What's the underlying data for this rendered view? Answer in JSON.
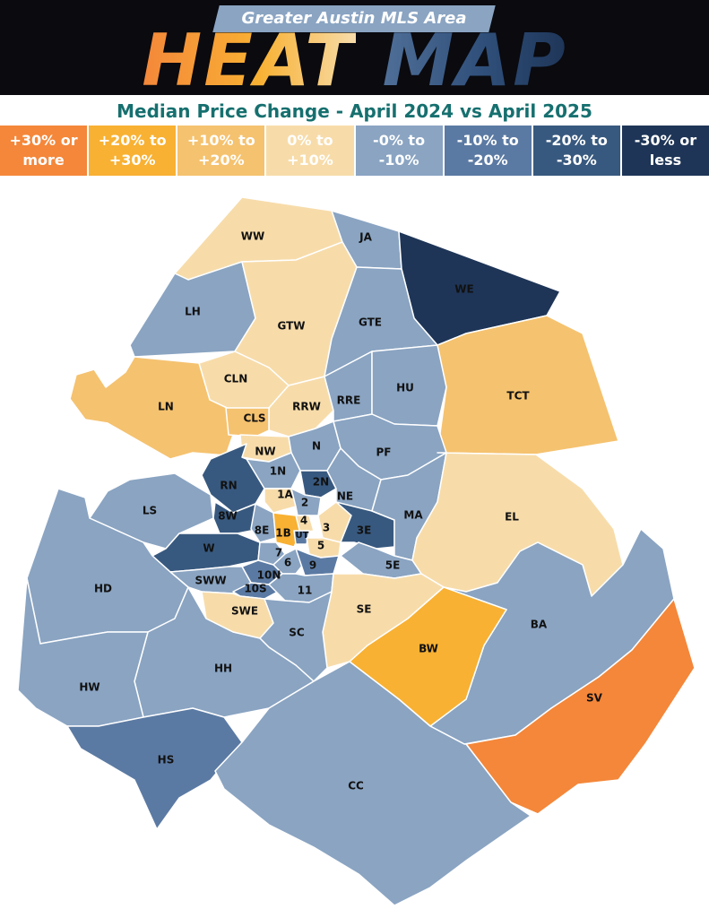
{
  "header": {
    "banner": "Greater Austin MLS Area",
    "title_heat": "HEAT",
    "title_map": "MAP"
  },
  "subtitle": "Median Price Change - April 2024 vs April 2025",
  "legend": [
    {
      "label": "+30% or\nmore",
      "color": "#f4873a"
    },
    {
      "label": "+20% to\n+30%",
      "color": "#f8b133"
    },
    {
      "label": "+10% to\n+20%",
      "color": "#f5c26f"
    },
    {
      "label": "0% to\n+10%",
      "color": "#f7dcaa"
    },
    {
      "label": "-0% to\n-10%",
      "color": "#8aa4c2"
    },
    {
      "label": "-10% to\n-20%",
      "color": "#5b7aa3"
    },
    {
      "label": "-20% to\n-30%",
      "color": "#38597f"
    },
    {
      "label": "-30% or\nless",
      "color": "#1e3557"
    }
  ],
  "areas": [
    {
      "code": "WW",
      "bucket": "0% to +10%"
    },
    {
      "code": "JA",
      "bucket": "-0% to -10%"
    },
    {
      "code": "WE",
      "bucket": "-30% or less"
    },
    {
      "code": "LH",
      "bucket": "-0% to -10%"
    },
    {
      "code": "GTW",
      "bucket": "0% to +10%"
    },
    {
      "code": "GTE",
      "bucket": "-0% to -10%"
    },
    {
      "code": "TCT",
      "bucket": "+10% to +20%"
    },
    {
      "code": "CLN",
      "bucket": "0% to +10%"
    },
    {
      "code": "LN",
      "bucket": "+10% to +20%"
    },
    {
      "code": "RRW",
      "bucket": "0% to +10%"
    },
    {
      "code": "RRE",
      "bucket": "-0% to -10%"
    },
    {
      "code": "HU",
      "bucket": "-0% to -10%"
    },
    {
      "code": "CLS",
      "bucket": "+10% to +20%"
    },
    {
      "code": "NW",
      "bucket": "0% to +10%"
    },
    {
      "code": "N",
      "bucket": "-0% to -10%"
    },
    {
      "code": "PF",
      "bucket": "-0% to -10%"
    },
    {
      "code": "1N",
      "bucket": "-0% to -10%"
    },
    {
      "code": "2N",
      "bucket": "-20% to -30%"
    },
    {
      "code": "RN",
      "bucket": "-20% to -30%"
    },
    {
      "code": "1A",
      "bucket": "0% to +10%"
    },
    {
      "code": "2",
      "bucket": "-0% to -10%"
    },
    {
      "code": "NE",
      "bucket": "-0% to -10%"
    },
    {
      "code": "LS",
      "bucket": "-0% to -10%"
    },
    {
      "code": "8W",
      "bucket": "-20% to -30%"
    },
    {
      "code": "4",
      "bucket": "0% to +10%"
    },
    {
      "code": "3",
      "bucket": "0% to +10%"
    },
    {
      "code": "3E",
      "bucket": "-20% to -30%"
    },
    {
      "code": "MA",
      "bucket": "-0% to -10%"
    },
    {
      "code": "EL",
      "bucket": "0% to +10%"
    },
    {
      "code": "8E",
      "bucket": "-0% to -10%"
    },
    {
      "code": "1B",
      "bucket": "+20% to +30%"
    },
    {
      "code": "UT",
      "bucket": "-10% to -20%"
    },
    {
      "code": "W",
      "bucket": "-20% to -30%"
    },
    {
      "code": "7",
      "bucket": "-0% to -10%"
    },
    {
      "code": "5",
      "bucket": "0% to +10%"
    },
    {
      "code": "6",
      "bucket": "-0% to -10%"
    },
    {
      "code": "9",
      "bucket": "-10% to -20%"
    },
    {
      "code": "5E",
      "bucket": "-0% to -10%"
    },
    {
      "code": "10N",
      "bucket": "-10% to -20%"
    },
    {
      "code": "SWW",
      "bucket": "-0% to -10%"
    },
    {
      "code": "10S",
      "bucket": "-10% to -20%"
    },
    {
      "code": "11",
      "bucket": "-0% to -10%"
    },
    {
      "code": "HD",
      "bucket": "-0% to -10%"
    },
    {
      "code": "SWE",
      "bucket": "0% to +10%"
    },
    {
      "code": "SE",
      "bucket": "0% to +10%"
    },
    {
      "code": "BA",
      "bucket": "-0% to -10%"
    },
    {
      "code": "SC",
      "bucket": "-0% to -10%"
    },
    {
      "code": "BW",
      "bucket": "+20% to +30%"
    },
    {
      "code": "HH",
      "bucket": "-0% to -10%"
    },
    {
      "code": "HW",
      "bucket": "-0% to -10%"
    },
    {
      "code": "SV",
      "bucket": "+30% or more"
    },
    {
      "code": "HS",
      "bucket": "-10% to -20%"
    },
    {
      "code": "CC",
      "bucket": "-0% to -10%"
    }
  ]
}
